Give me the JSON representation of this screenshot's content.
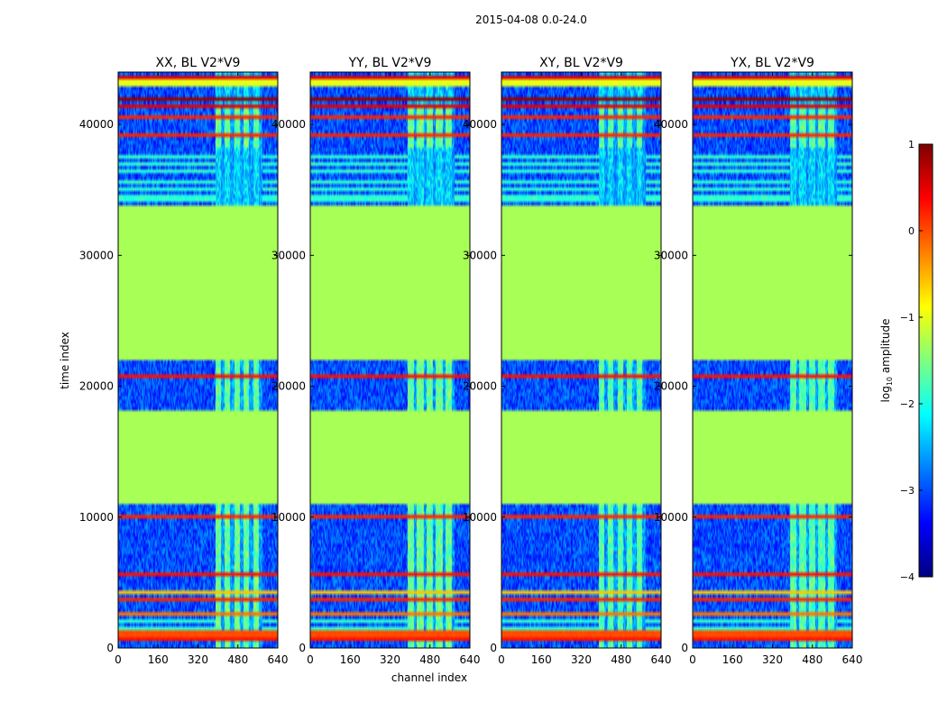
{
  "chart_data": {
    "type": "heatmap",
    "suptitle": "2015-04-08 0.0-24.0",
    "xlabel": "channel index",
    "ylabel": "time index",
    "xlim": [
      0,
      640
    ],
    "ylim": [
      0,
      44000
    ],
    "x_ticks": [
      0,
      160,
      320,
      480,
      640
    ],
    "y_ticks": [
      0,
      10000,
      20000,
      30000,
      40000
    ],
    "x_tick_labels": [
      "0",
      "160",
      "320",
      "480",
      "640"
    ],
    "y_tick_labels": [
      "0",
      "10000",
      "20000",
      "30000",
      "40000"
    ],
    "panels": [
      {
        "title": "XX, BL V2*V9",
        "pol": "XX"
      },
      {
        "title": "YY, BL V2*V9",
        "pol": "YY"
      },
      {
        "title": "XY, BL V2*V9",
        "pol": "XY"
      },
      {
        "title": "YX, BL V2*V9",
        "pol": "YX"
      }
    ],
    "colorbar": {
      "label": "log10 amplitude",
      "label_main": "log",
      "label_sub": "10",
      "label_rest": " amplitude",
      "range": [
        -4,
        1
      ],
      "ticks": [
        1,
        0,
        -1,
        -2,
        -3,
        -4
      ],
      "tick_labels": [
        "1",
        "0",
        "−1",
        "−2",
        "−3",
        "−4"
      ],
      "colormap": [
        "#00007f",
        "#0000ff",
        "#007fff",
        "#00ffff",
        "#7fff7f",
        "#ffff00",
        "#ff7f00",
        "#ff0000",
        "#7f0000"
      ]
    },
    "flagged_time_ranges": [
      [
        11000,
        18000
      ],
      [
        22000,
        33800
      ]
    ],
    "flagged_level": -1.3,
    "rfi_channel_range": [
      390,
      580
    ],
    "background_level": -3.0
  }
}
